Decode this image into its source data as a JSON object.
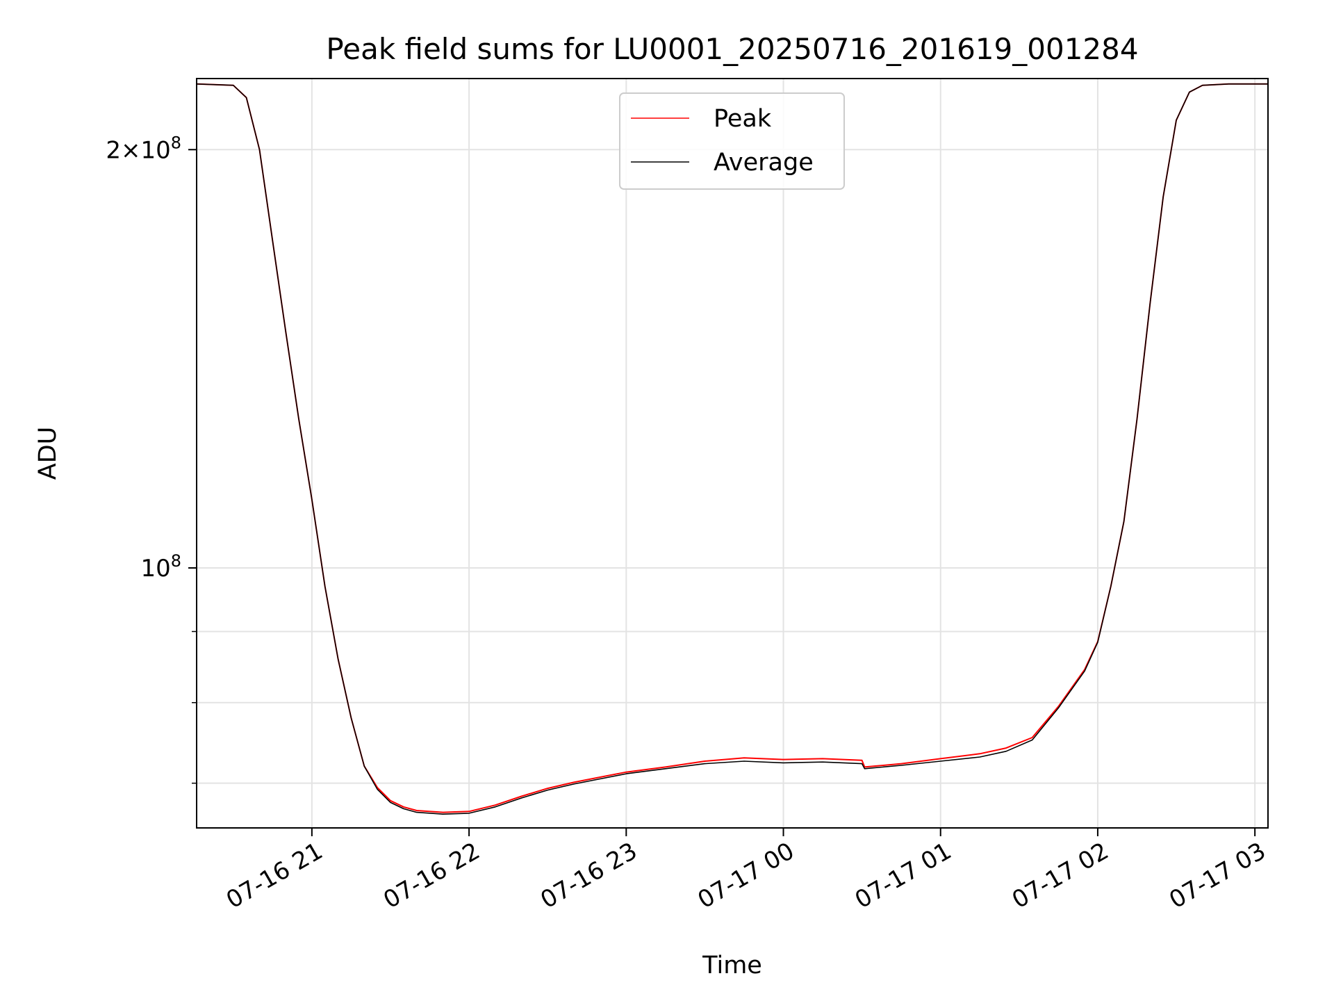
{
  "chart_data": {
    "type": "line",
    "title": "Peak field sums for LU0001_20250716_201619_001284",
    "xlabel": "Time",
    "ylabel": "ADU",
    "y_scale": "log",
    "grid": true,
    "legend_position": "top-center",
    "xlim": [
      "2025-07-16 20:16",
      "2025-07-17 03:05"
    ],
    "ylim": [
      65000000,
      225000000
    ],
    "x_ticks": [
      {
        "value": "2025-07-16 21:00",
        "label": "07-16 21"
      },
      {
        "value": "2025-07-16 22:00",
        "label": "07-16 22"
      },
      {
        "value": "2025-07-16 23:00",
        "label": "07-16 23"
      },
      {
        "value": "2025-07-17 00:00",
        "label": "07-17 00"
      },
      {
        "value": "2025-07-17 01:00",
        "label": "07-17 01"
      },
      {
        "value": "2025-07-17 02:00",
        "label": "07-17 02"
      },
      {
        "value": "2025-07-17 03:00",
        "label": "07-17 03"
      }
    ],
    "y_major_ticks": [
      {
        "value": 100000000,
        "base": "10",
        "exp": "8",
        "coef": ""
      },
      {
        "value": 200000000,
        "base": "10",
        "exp": "8",
        "coef": "2"
      }
    ],
    "y_minor_ticks": [
      70000000,
      80000000,
      90000000
    ],
    "series": [
      {
        "name": "Peak",
        "color": "#ff0000",
        "x": [
          "2025-07-16 20:16",
          "2025-07-16 20:30",
          "2025-07-16 20:35",
          "2025-07-16 20:40",
          "2025-07-16 20:45",
          "2025-07-16 20:50",
          "2025-07-16 20:55",
          "2025-07-16 21:00",
          "2025-07-16 21:05",
          "2025-07-16 21:10",
          "2025-07-16 21:15",
          "2025-07-16 21:20",
          "2025-07-16 21:25",
          "2025-07-16 21:30",
          "2025-07-16 21:35",
          "2025-07-16 21:40",
          "2025-07-16 21:50",
          "2025-07-16 22:00",
          "2025-07-16 22:10",
          "2025-07-16 22:20",
          "2025-07-16 22:30",
          "2025-07-16 22:40",
          "2025-07-16 22:50",
          "2025-07-16 23:00",
          "2025-07-16 23:15",
          "2025-07-16 23:30",
          "2025-07-16 23:45",
          "2025-07-17 00:00",
          "2025-07-17 00:15",
          "2025-07-17 00:30",
          "2025-07-17 00:31",
          "2025-07-17 00:45",
          "2025-07-17 01:00",
          "2025-07-17 01:15",
          "2025-07-17 01:25",
          "2025-07-17 01:35",
          "2025-07-17 01:45",
          "2025-07-17 01:55",
          "2025-07-17 02:00",
          "2025-07-17 02:05",
          "2025-07-17 02:10",
          "2025-07-17 02:15",
          "2025-07-17 02:20",
          "2025-07-17 02:25",
          "2025-07-17 02:30",
          "2025-07-17 02:35",
          "2025-07-17 02:40",
          "2025-07-17 02:50",
          "2025-07-17 03:05"
        ],
        "y": [
          223000000,
          222500000,
          218000000,
          200000000,
          172000000,
          148000000,
          128000000,
          112000000,
          97000000,
          86000000,
          78000000,
          72000000,
          69500000,
          68000000,
          67300000,
          66900000,
          66700000,
          66800000,
          67500000,
          68500000,
          69400000,
          70100000,
          70700000,
          71300000,
          71900000,
          72600000,
          73000000,
          72800000,
          72900000,
          72700000,
          71900000,
          72300000,
          72900000,
          73500000,
          74200000,
          75500000,
          79500000,
          84500000,
          88500000,
          97000000,
          108000000,
          128000000,
          155000000,
          185000000,
          210000000,
          220000000,
          222500000,
          223000000,
          223000000
        ]
      },
      {
        "name": "Average",
        "color": "#000000",
        "x": [
          "2025-07-16 20:16",
          "2025-07-16 20:30",
          "2025-07-16 20:35",
          "2025-07-16 20:40",
          "2025-07-16 20:45",
          "2025-07-16 20:50",
          "2025-07-16 20:55",
          "2025-07-16 21:00",
          "2025-07-16 21:05",
          "2025-07-16 21:10",
          "2025-07-16 21:15",
          "2025-07-16 21:20",
          "2025-07-16 21:25",
          "2025-07-16 21:30",
          "2025-07-16 21:35",
          "2025-07-16 21:40",
          "2025-07-16 21:50",
          "2025-07-16 22:00",
          "2025-07-16 22:10",
          "2025-07-16 22:20",
          "2025-07-16 22:30",
          "2025-07-16 22:40",
          "2025-07-16 22:50",
          "2025-07-16 23:00",
          "2025-07-16 23:15",
          "2025-07-16 23:30",
          "2025-07-16 23:45",
          "2025-07-17 00:00",
          "2025-07-17 00:15",
          "2025-07-17 00:30",
          "2025-07-17 00:31",
          "2025-07-17 00:45",
          "2025-07-17 01:00",
          "2025-07-17 01:15",
          "2025-07-17 01:25",
          "2025-07-17 01:35",
          "2025-07-17 01:45",
          "2025-07-17 01:55",
          "2025-07-17 02:00",
          "2025-07-17 02:05",
          "2025-07-17 02:10",
          "2025-07-17 02:15",
          "2025-07-17 02:20",
          "2025-07-17 02:25",
          "2025-07-17 02:30",
          "2025-07-17 02:35",
          "2025-07-17 02:40",
          "2025-07-17 02:50",
          "2025-07-17 03:05"
        ],
        "y": [
          223000000,
          222500000,
          218000000,
          200000000,
          172000000,
          148000000,
          128000000,
          112000000,
          97000000,
          86000000,
          78000000,
          72000000,
          69300000,
          67800000,
          67100000,
          66700000,
          66500000,
          66600000,
          67300000,
          68300000,
          69200000,
          69900000,
          70500000,
          71100000,
          71700000,
          72300000,
          72600000,
          72400000,
          72500000,
          72300000,
          71700000,
          72100000,
          72600000,
          73100000,
          73800000,
          75200000,
          79300000,
          84300000,
          88400000,
          97000000,
          108000000,
          128000000,
          155000000,
          185000000,
          210000000,
          220000000,
          222500000,
          223000000,
          223000000
        ]
      }
    ]
  }
}
